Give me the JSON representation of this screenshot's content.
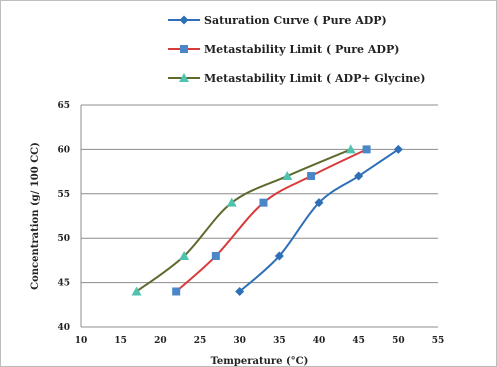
{
  "chart_data": {
    "type": "line",
    "xlabel": "Temperature (°C)",
    "ylabel": "Concentration (g/ 100 CC)",
    "xlim": [
      10,
      55
    ],
    "ylim": [
      40,
      65
    ],
    "x_ticks": [
      10,
      15,
      20,
      25,
      30,
      35,
      40,
      45,
      50,
      55
    ],
    "y_ticks": [
      40,
      45,
      50,
      55,
      60,
      65
    ],
    "grid": "horizontal",
    "legend_position": "top",
    "series": [
      {
        "name": "Saturation Curve ( Pure ADP)",
        "color": "#2e6fb7",
        "marker": "diamond",
        "x": [
          30,
          35,
          40,
          45,
          50
        ],
        "y": [
          44,
          48,
          54,
          57,
          60
        ]
      },
      {
        "name": "Metastability Limit ( Pure ADP)",
        "color": "#d93a3a",
        "marker": "square",
        "marker_color": "#4a87c9",
        "x": [
          22,
          27,
          33,
          39,
          46
        ],
        "y": [
          44,
          48,
          54,
          57,
          60
        ]
      },
      {
        "name": "Metastability Limit ( ADP+ Glycine)",
        "color": "#5e6b2f",
        "marker": "triangle",
        "marker_color": "#4fc3b0",
        "x": [
          17,
          23,
          29,
          36,
          44
        ],
        "y": [
          44,
          48,
          54,
          57,
          60
        ]
      }
    ]
  }
}
